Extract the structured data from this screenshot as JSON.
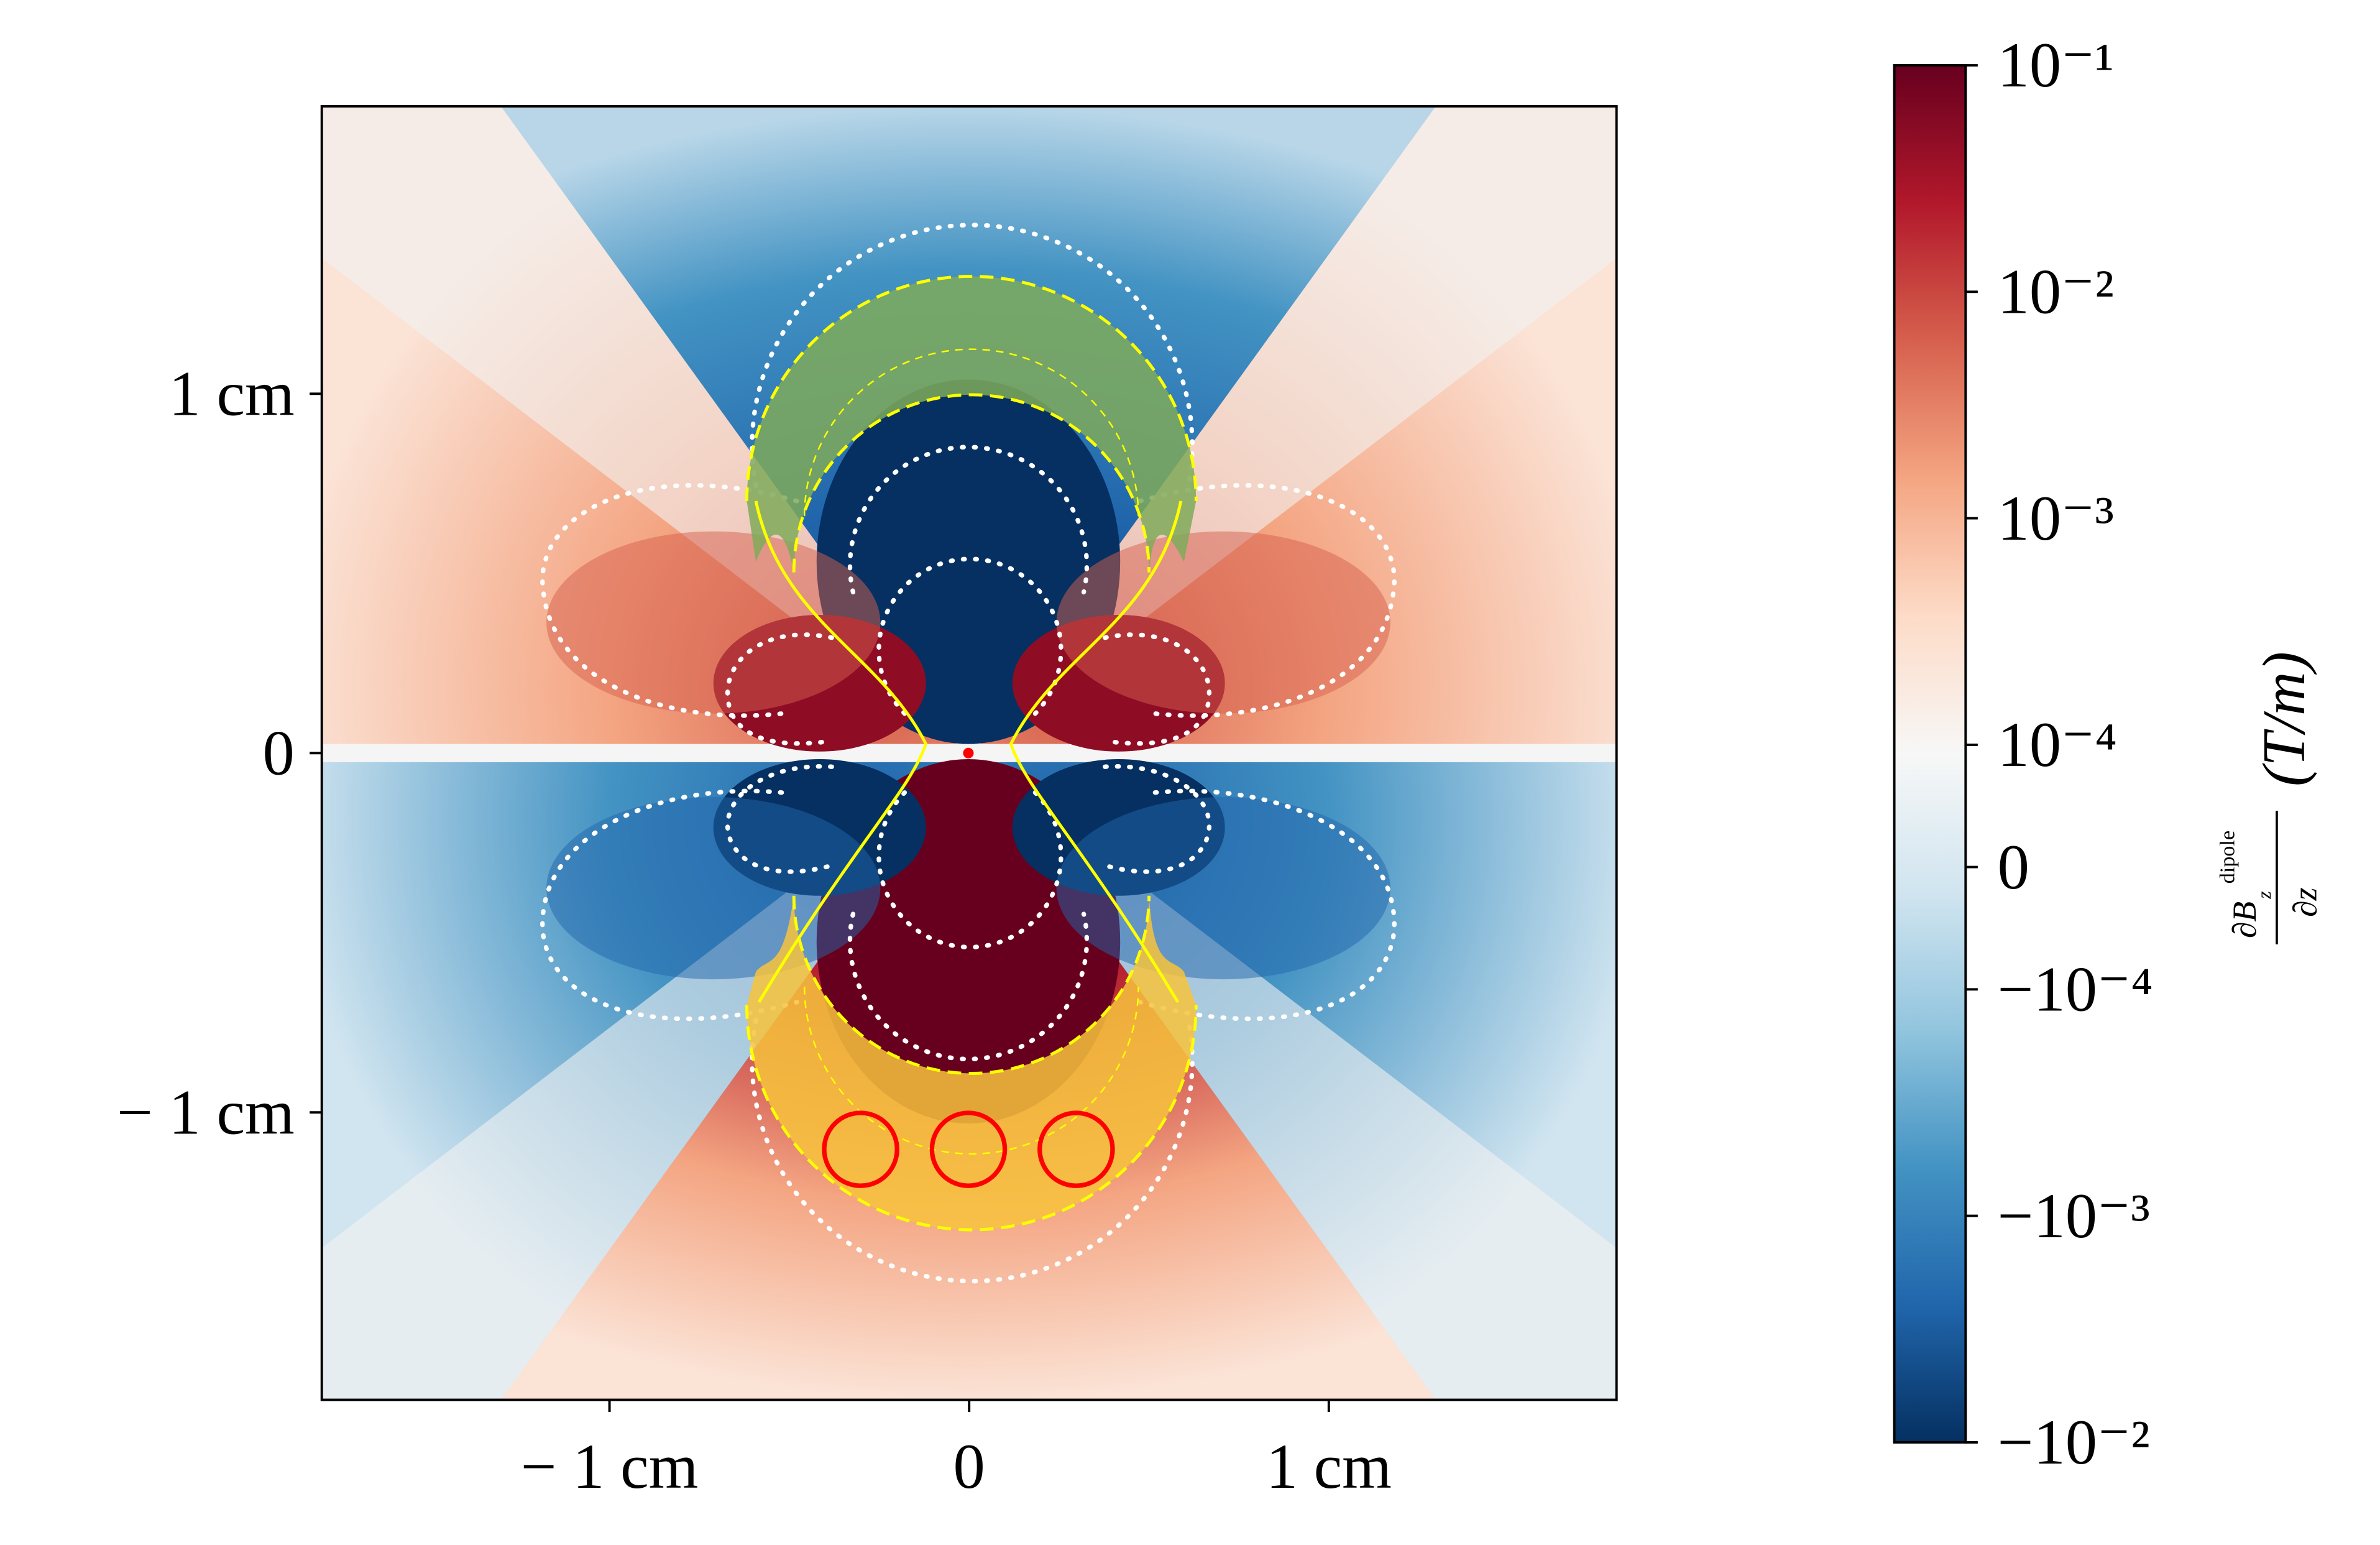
{
  "chart_data": {
    "type": "heatmap",
    "xlim": [
      -1.8,
      1.8
    ],
    "ylim": [
      -1.8,
      1.8
    ],
    "xticks": [
      {
        "value": -1,
        "label": "− 1 cm"
      },
      0,
      {
        "value": 1,
        "label": "1 cm"
      }
    ],
    "yticks": [
      {
        "value": -1,
        "label": "− 1 cm"
      },
      0,
      {
        "value": 1,
        "label": "1 cm"
      }
    ],
    "colorbar": {
      "norm": "symlog",
      "linthresh": 0.0001,
      "linscale": 0.54,
      "clim": [
        -0.01,
        0.1
      ],
      "ticks": [
        {
          "value": 0.1,
          "label": "10⁻¹"
        },
        {
          "value": 0.01,
          "label": "10⁻²"
        },
        {
          "value": 0.001,
          "label": "10⁻³"
        },
        {
          "value": 0.0001,
          "label": "10⁻⁴"
        },
        0,
        {
          "value": -0.0001,
          "label": "−10⁻⁴"
        },
        {
          "value": -0.001,
          "label": "−10⁻³"
        },
        {
          "value": -0.01,
          "label": "−10⁻²"
        }
      ],
      "label_parts": [
        "∂B",
        "z",
        "dipole",
        "∂z",
        "(T/m)"
      ]
    }
  }
}
